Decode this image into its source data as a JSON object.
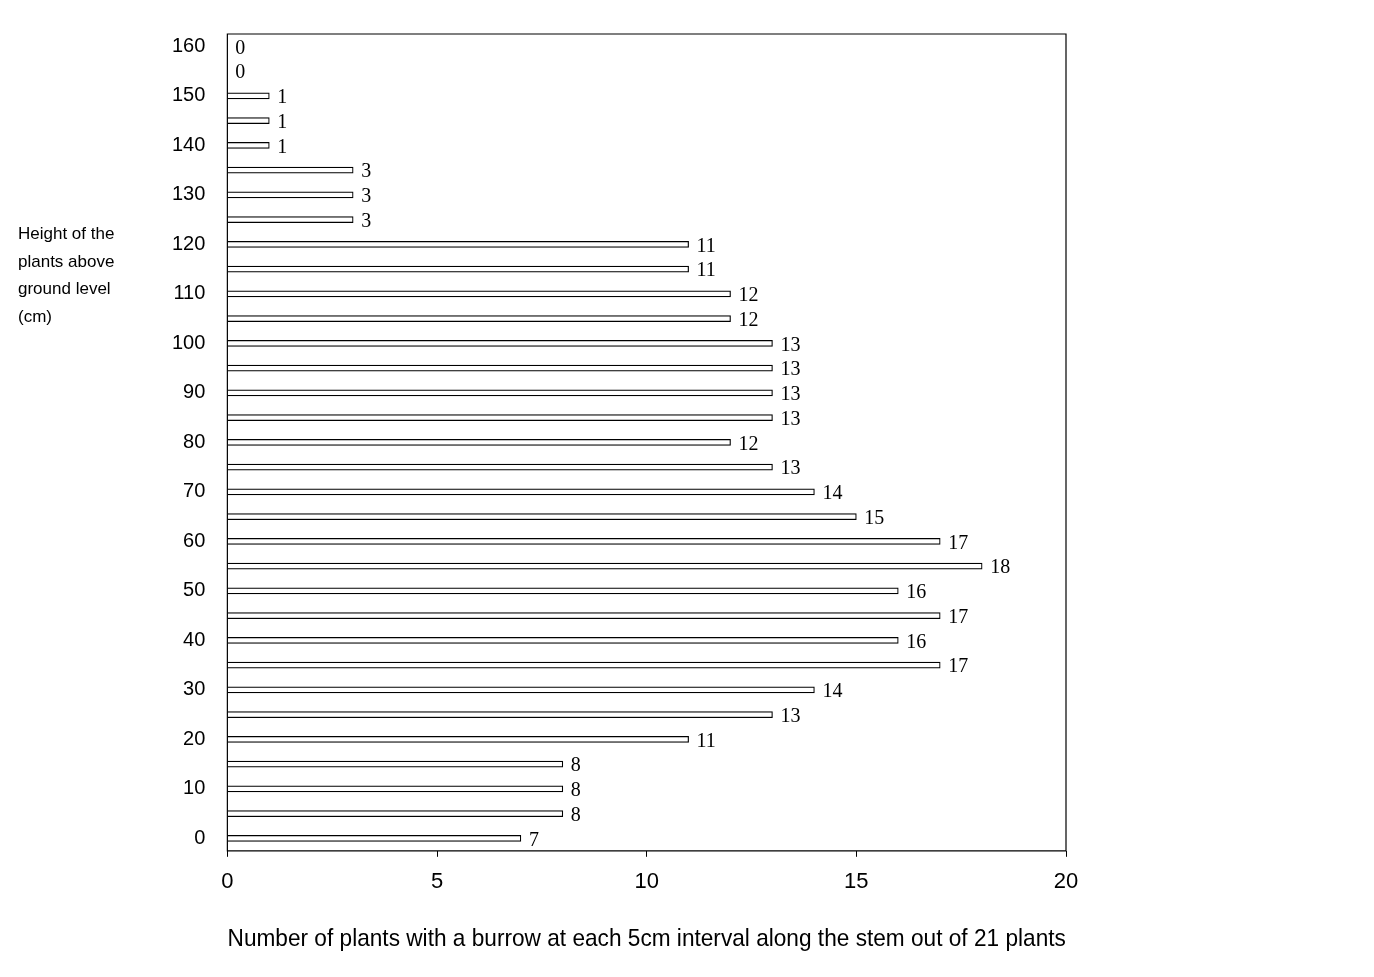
{
  "chart_data": {
    "type": "bar",
    "orientation": "horizontal",
    "xlabel": "Number of plants with a burrow at each 5cm interval along the stem out of 21 plants",
    "ylabel": "Height of the plants above ground level (cm)",
    "categories": [
      "160",
      null,
      "150",
      null,
      "140",
      null,
      "130",
      null,
      "120",
      null,
      "110",
      null,
      "100",
      null,
      "90",
      null,
      "80",
      null,
      "70",
      null,
      "60",
      null,
      "50",
      null,
      "40",
      null,
      "30",
      null,
      "20",
      null,
      "10",
      null,
      "0"
    ],
    "values": [
      0,
      0,
      1,
      1,
      1,
      3,
      3,
      3,
      11,
      11,
      12,
      12,
      13,
      13,
      13,
      13,
      12,
      13,
      14,
      15,
      17,
      18,
      16,
      17,
      16,
      17,
      14,
      13,
      11,
      8,
      8,
      8,
      7
    ],
    "color": "#ffffff",
    "xlim": [
      0,
      20
    ],
    "xticks": [
      0,
      5,
      10,
      15,
      20
    ],
    "data_labels": true
  }
}
